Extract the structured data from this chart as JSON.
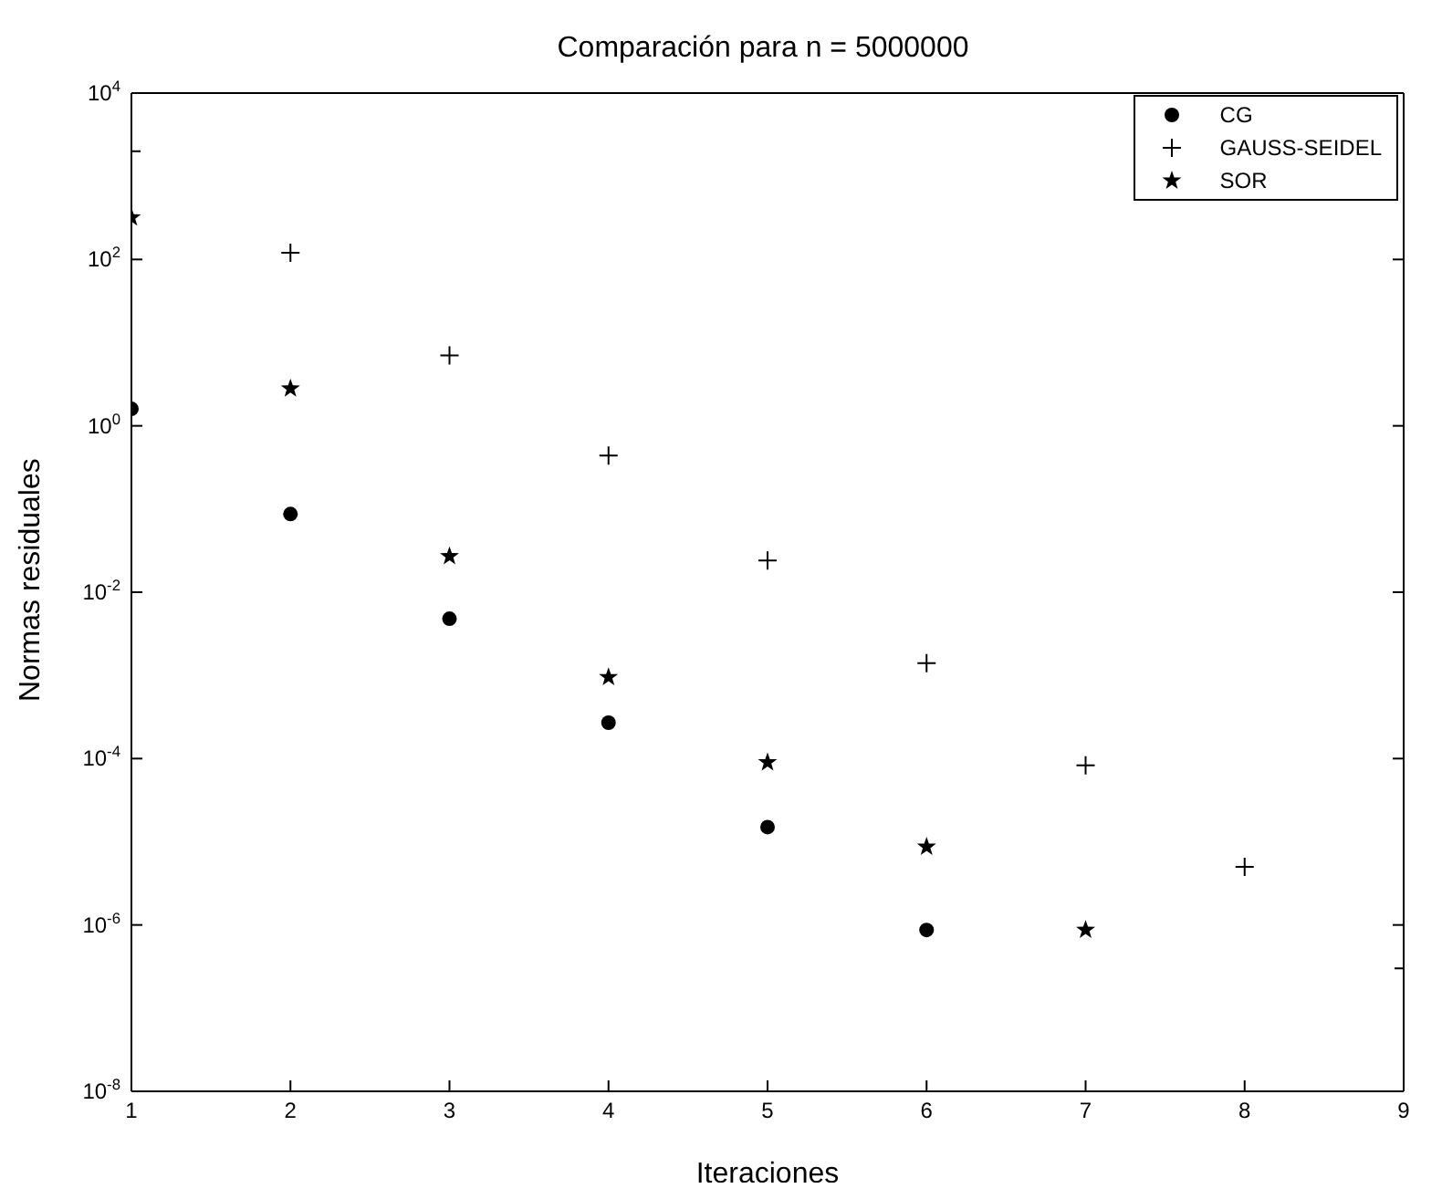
{
  "chart_data": {
    "type": "scatter",
    "title": "Comparación para n = 5000000",
    "xlabel": "Iteraciones",
    "ylabel": "Normas residuales",
    "x": [
      1,
      2,
      3,
      4,
      5,
      6,
      7,
      8,
      9
    ],
    "series": [
      {
        "name": "CG",
        "color": "#000000",
        "marker": "circle",
        "values": [
          1.6,
          0.087,
          0.0048,
          0.00027,
          1.5e-05,
          8.7e-07,
          null,
          null,
          null
        ]
      },
      {
        "name": "GAUSS-SEIDEL",
        "color": "#000000",
        "marker": "cross",
        "values": [
          2000,
          120,
          7,
          0.44,
          0.024,
          0.0014,
          8.3e-05,
          5e-06,
          3e-07
        ]
      },
      {
        "name": "SOR",
        "color": "#000000",
        "marker": "star",
        "values": [
          320,
          2.8,
          0.027,
          0.00095,
          9e-05,
          8.7e-06,
          8.7e-07,
          null,
          null
        ]
      }
    ],
    "log": "y",
    "xlim": [
      1,
      9
    ],
    "xticks": [
      1,
      2,
      3,
      4,
      5,
      6,
      7,
      8,
      9
    ],
    "ylim": [
      1e-08,
      10000
    ],
    "yticks": [
      {
        "value": 1e-08,
        "label": "10$^{-8}$"
      },
      {
        "value": 1e-06,
        "label": "10$^{-6}$"
      },
      {
        "value": 0.0001,
        "label": "10$^{-4}$"
      },
      {
        "value": 0.01,
        "label": "10$^{-2}$"
      },
      {
        "value": 1,
        "label": "10$^{0}$"
      },
      {
        "value": 100,
        "label": "10$^{2}$"
      },
      {
        "value": 10000,
        "label": "10$^{4}$"
      }
    ],
    "legend": "top right"
  }
}
